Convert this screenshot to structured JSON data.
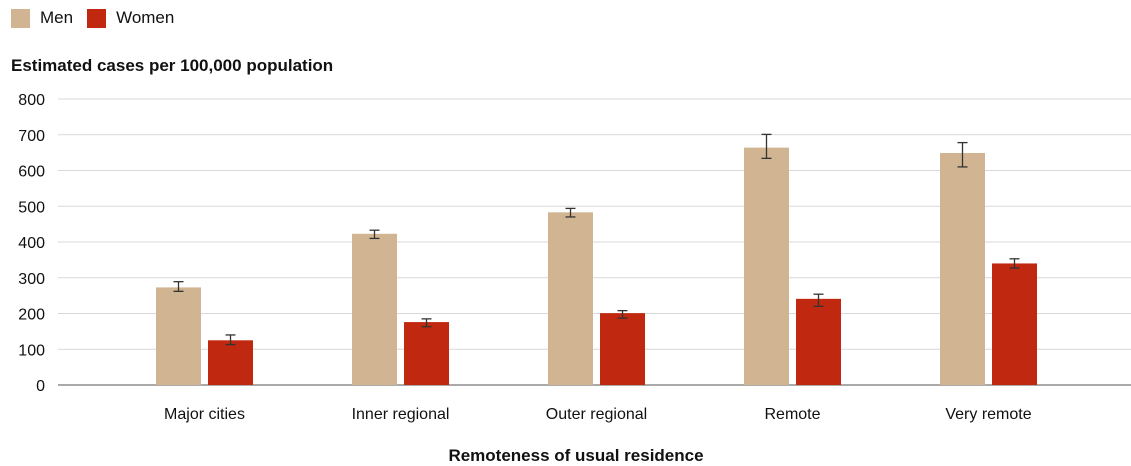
{
  "chart_data": {
    "type": "bar",
    "title": "",
    "ylabel": "Estimated cases per 100,000 population",
    "xlabel": "Remoteness of usual residence",
    "categories": [
      "Major cities",
      "Inner regional",
      "Outer regional",
      "Remote",
      "Very remote"
    ],
    "series": [
      {
        "name": "Men",
        "color": "#D1B592",
        "values": [
          273,
          423,
          483,
          664,
          649
        ],
        "error_low": [
          262,
          410,
          470,
          634,
          610
        ],
        "error_high": [
          289,
          433,
          494,
          701,
          678
        ]
      },
      {
        "name": "Women",
        "color": "#C0280F",
        "values": [
          125,
          176,
          201,
          241,
          340
        ],
        "error_low": [
          113,
          163,
          187,
          220,
          327
        ],
        "error_high": [
          140,
          185,
          208,
          254,
          353
        ]
      }
    ],
    "ylim": [
      0,
      800
    ],
    "yticks": [
      0,
      100,
      200,
      300,
      400,
      500,
      600,
      700,
      800
    ],
    "grid": true,
    "legend_position": "top-left"
  }
}
